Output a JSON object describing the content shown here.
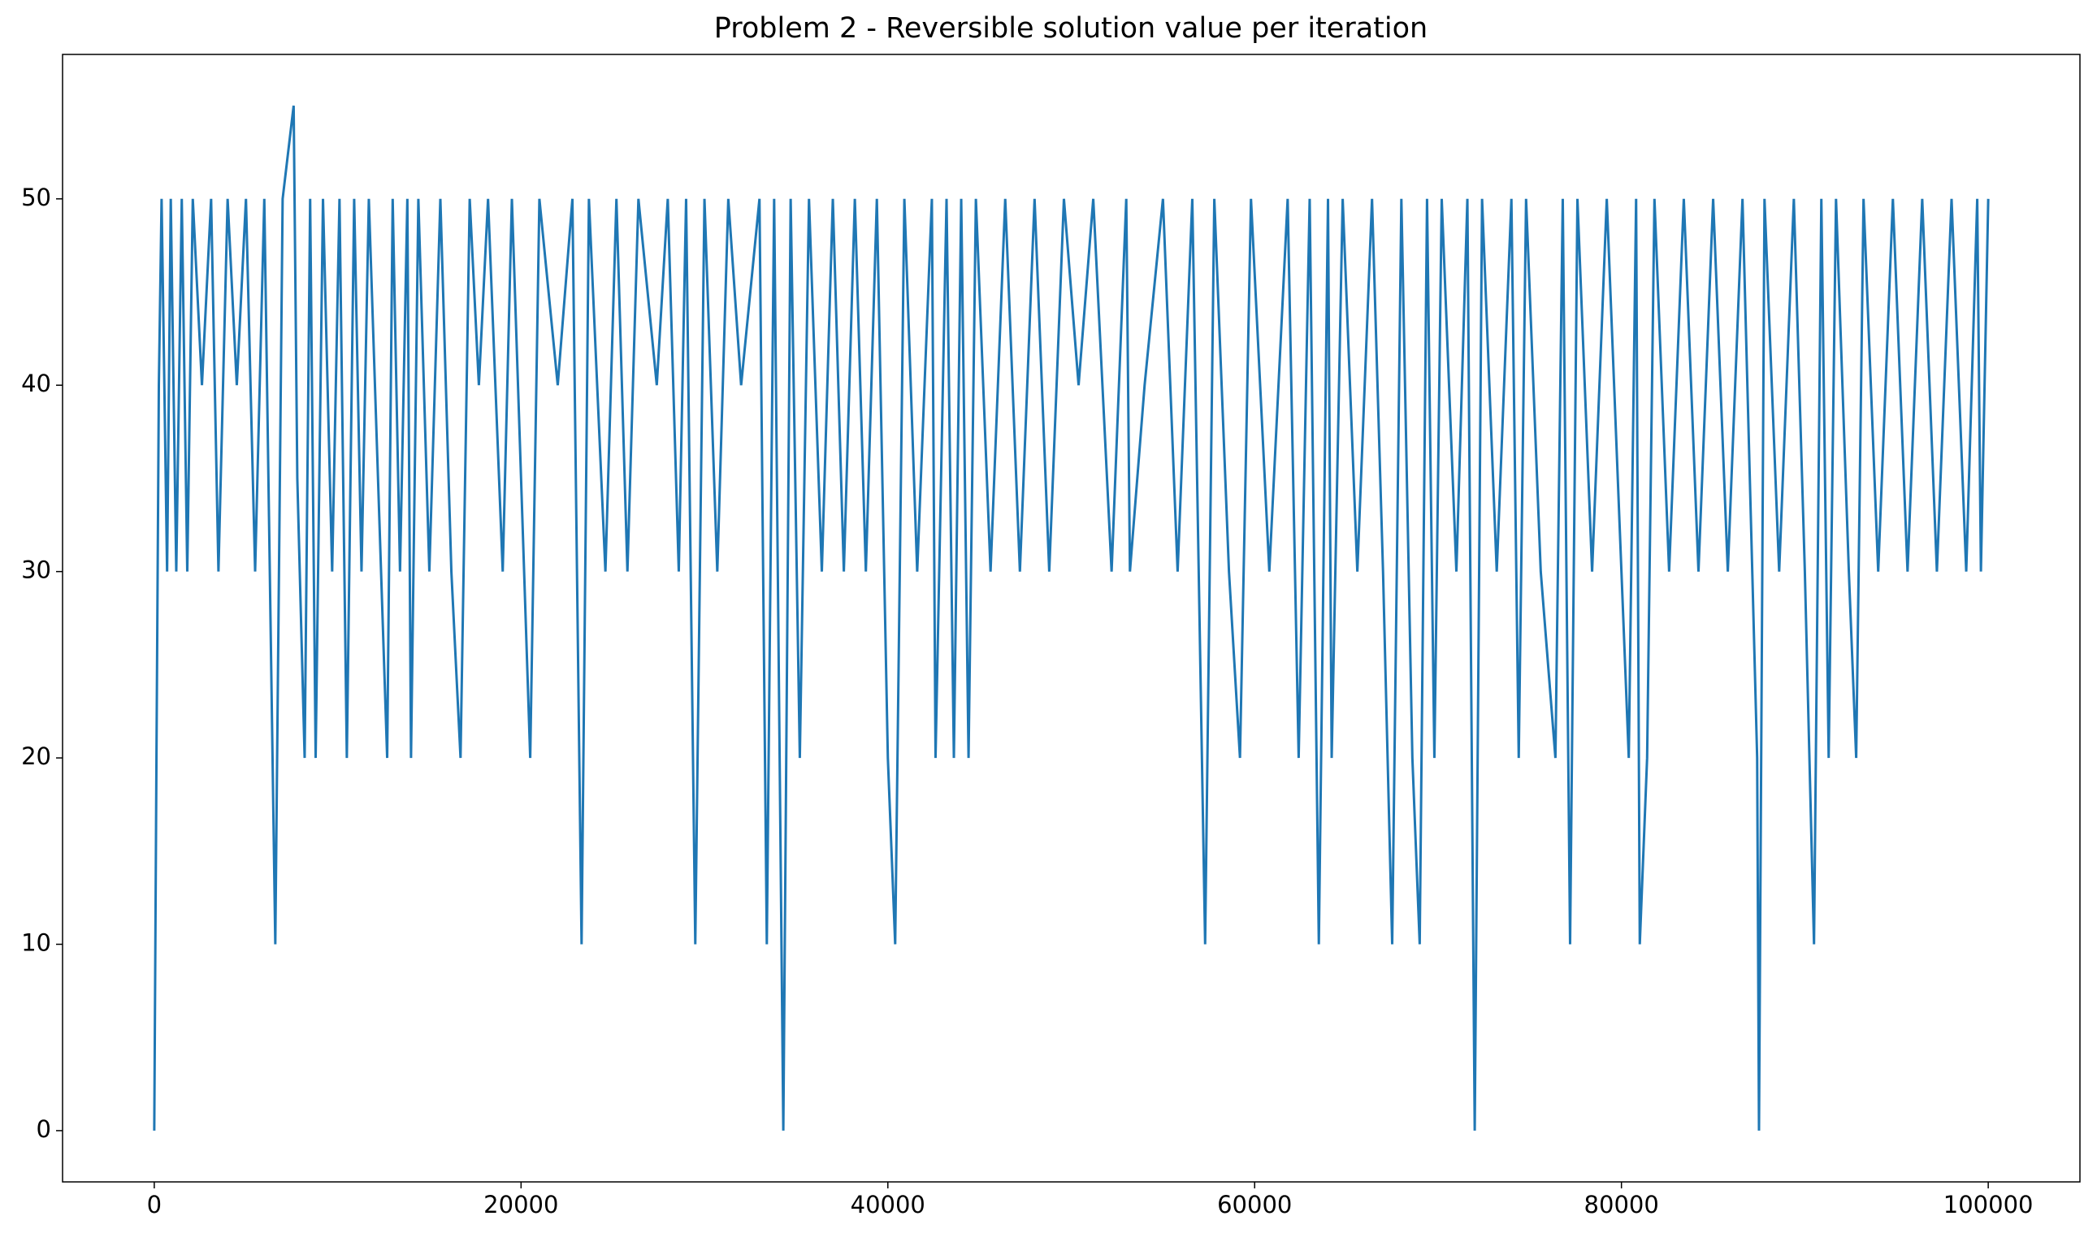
{
  "chart_data": {
    "type": "line",
    "title": "Problem 2 - Reversible solution value per iteration",
    "x": [
      0,
      60,
      120,
      250,
      400,
      700,
      900,
      1200,
      1500,
      1800,
      2100,
      2600,
      3100,
      3500,
      4000,
      4500,
      5000,
      5500,
      6000,
      6600,
      7000,
      7600,
      7800,
      8200,
      8500,
      8800,
      9200,
      9700,
      10100,
      10500,
      10900,
      11300,
      11700,
      12700,
      13000,
      13400,
      13800,
      14000,
      14400,
      15000,
      15600,
      16200,
      16700,
      17200,
      17700,
      18200,
      19000,
      19500,
      20500,
      21000,
      22000,
      22800,
      23300,
      23700,
      24600,
      25200,
      25800,
      26400,
      27400,
      28000,
      28600,
      29000,
      29500,
      30000,
      30700,
      31300,
      32000,
      33000,
      33400,
      33800,
      34300,
      34700,
      35200,
      35700,
      36400,
      37000,
      37600,
      38200,
      38800,
      39400,
      40000,
      40400,
      40900,
      41600,
      42400,
      42600,
      43200,
      43600,
      44000,
      44400,
      44800,
      45600,
      46400,
      47200,
      48000,
      48800,
      49600,
      50400,
      51200,
      52200,
      53000,
      53200,
      54000,
      55000,
      55800,
      56600,
      57300,
      57800,
      58600,
      59200,
      59800,
      60800,
      61800,
      62400,
      63000,
      63500,
      64000,
      64200,
      64800,
      65600,
      66400,
      67000,
      67500,
      68000,
      68600,
      69000,
      69400,
      69800,
      70200,
      71000,
      71600,
      72000,
      72400,
      73200,
      74000,
      74400,
      74800,
      75600,
      76400,
      76800,
      77200,
      77600,
      78400,
      79200,
      80000,
      80400,
      80800,
      81000,
      81400,
      81800,
      82600,
      83400,
      84200,
      85000,
      85800,
      86600,
      87400,
      87500,
      87800,
      88600,
      89400,
      90000,
      90500,
      90900,
      91300,
      91700,
      92400,
      92800,
      93200,
      94000,
      94800,
      95600,
      96400,
      97200,
      98000,
      98800,
      99400,
      99600,
      100000
    ],
    "values": [
      0,
      10,
      20,
      40,
      50,
      30,
      50,
      30,
      50,
      30,
      50,
      40,
      50,
      30,
      50,
      40,
      50,
      30,
      50,
      10,
      50,
      55,
      35,
      20,
      50,
      20,
      50,
      30,
      50,
      20,
      50,
      30,
      50,
      20,
      50,
      30,
      50,
      20,
      50,
      30,
      50,
      30,
      20,
      50,
      40,
      50,
      30,
      50,
      20,
      50,
      40,
      50,
      10,
      50,
      30,
      50,
      30,
      50,
      40,
      50,
      30,
      50,
      10,
      50,
      30,
      50,
      40,
      50,
      10,
      50,
      0,
      50,
      20,
      50,
      30,
      50,
      30,
      50,
      30,
      50,
      20,
      10,
      50,
      30,
      50,
      20,
      50,
      20,
      50,
      20,
      50,
      30,
      50,
      30,
      50,
      30,
      50,
      40,
      50,
      30,
      50,
      30,
      40,
      50,
      30,
      50,
      10,
      50,
      30,
      20,
      50,
      30,
      50,
      20,
      50,
      10,
      50,
      20,
      50,
      30,
      50,
      30,
      10,
      50,
      20,
      10,
      50,
      20,
      50,
      30,
      50,
      0,
      50,
      30,
      50,
      20,
      50,
      30,
      20,
      50,
      10,
      50,
      30,
      50,
      30,
      20,
      50,
      10,
      20,
      50,
      30,
      50,
      30,
      50,
      30,
      50,
      20,
      0,
      50,
      30,
      50,
      30,
      10,
      50,
      20,
      50,
      30,
      20,
      50,
      30,
      50,
      30,
      50,
      30,
      50,
      30,
      50,
      30,
      50
    ],
    "color": "#1f77b4",
    "xlim": [
      -5000,
      105000
    ],
    "ylim": [
      -2.75,
      57.75
    ],
    "xticks": [
      0,
      20000,
      40000,
      60000,
      80000,
      100000
    ],
    "yticks": [
      0,
      10,
      20,
      30,
      40,
      50
    ],
    "grid": false
  }
}
